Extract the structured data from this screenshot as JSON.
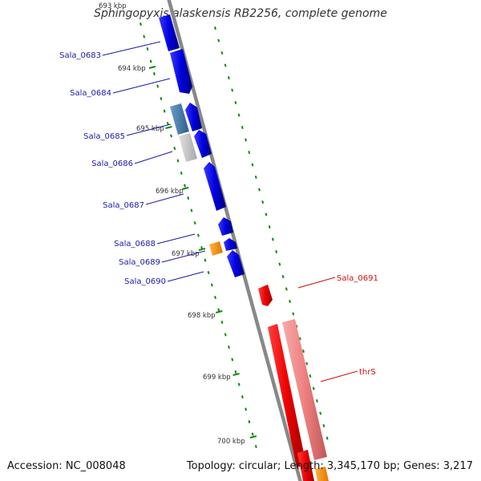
{
  "header": {
    "title": "Sphingopyxis alaskensis RB2256, complete genome"
  },
  "footer": {
    "accession": "Accession: NC_008048",
    "summary": "Topology: circular; Length: 3,345,170 bp; Genes: 3,217"
  },
  "scale_labels": [
    "693 kbp",
    "694 kbp",
    "695 kbp",
    "696 kbp",
    "697 kbp",
    "698 kbp",
    "699 kbp",
    "700 kbp"
  ],
  "gene_labels": [
    {
      "name": "Sala_0683",
      "color": "#1a1aa6"
    },
    {
      "name": "Sala_0684",
      "color": "#1a1aa6"
    },
    {
      "name": "Sala_0685",
      "color": "#1a1aa6"
    },
    {
      "name": "Sala_0686",
      "color": "#1a1aa6"
    },
    {
      "name": "Sala_0687",
      "color": "#1a1aa6"
    },
    {
      "name": "Sala_0688",
      "color": "#1a1aa6"
    },
    {
      "name": "Sala_0689",
      "color": "#1a1aa6"
    },
    {
      "name": "Sala_0690",
      "color": "#1a1aa6"
    },
    {
      "name": "Sala_0691",
      "color": "#cc1111"
    },
    {
      "name": "thrS",
      "color": "#cc1111"
    }
  ],
  "colors": {
    "forward_gene": "#0a0af0",
    "reverse_gene": "#f00000",
    "reverse_gene_light": "#f08080",
    "other_gene": "#ff9900",
    "blue_grey_gene": "#4a7fb0",
    "grey_gene": "#c8c8c8",
    "backbone": "#888888",
    "tick": "#118811"
  }
}
